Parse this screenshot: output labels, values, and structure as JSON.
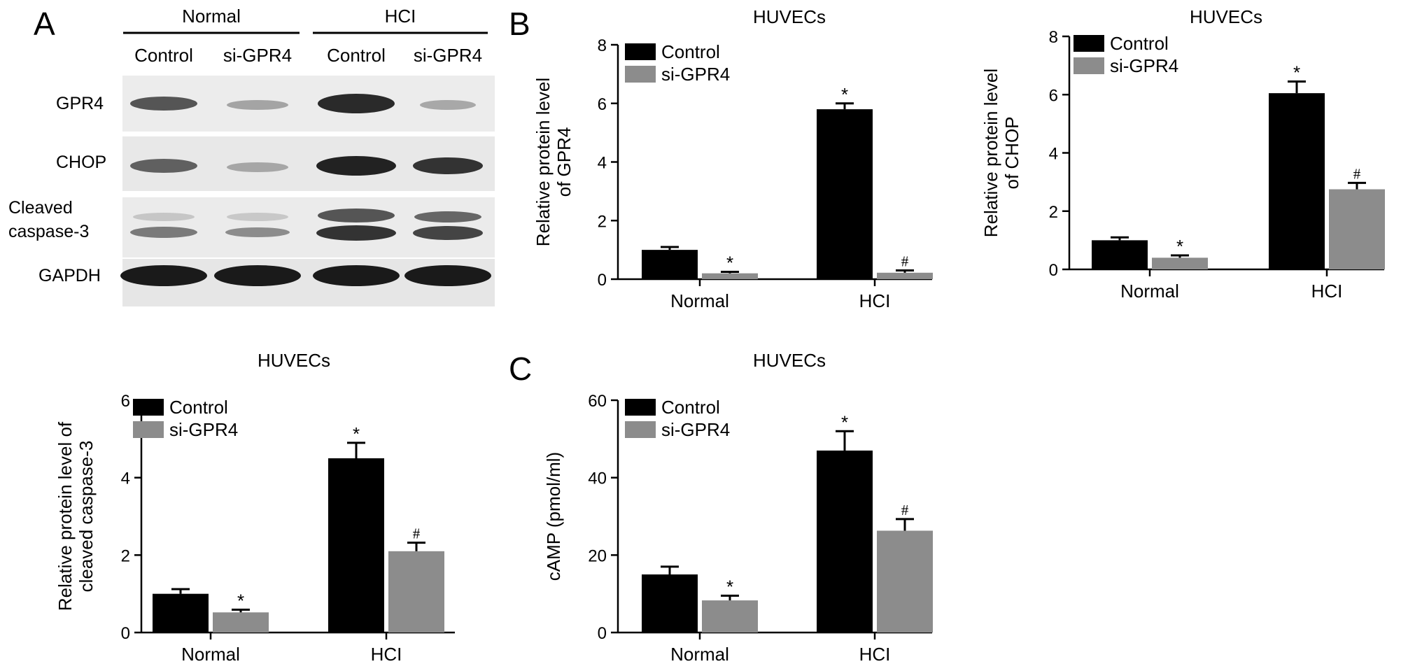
{
  "panel_labels": [
    "A",
    "B",
    "C"
  ],
  "blot": {
    "group_headers": [
      "Normal",
      "HCI"
    ],
    "lane_labels": [
      "Control",
      "si-GPR4",
      "Control",
      "si-GPR4"
    ],
    "row_labels": [
      "GPR4",
      "CHOP",
      "Cleaved\ncaspase-3",
      "GAPDH"
    ]
  },
  "colors": {
    "control": "#000000",
    "si_gpr4": "#8c8c8c"
  },
  "chart_data": [
    {
      "type": "bar",
      "panel": "B",
      "title": "HUVECs",
      "ylabel": "Relative protein level\nof GPR4",
      "categories": [
        "Normal",
        "HCI"
      ],
      "ylim": [
        0,
        8
      ],
      "yticks": [
        0,
        2,
        4,
        6,
        8
      ],
      "legend": "top-left",
      "series": [
        {
          "name": "Control",
          "values": [
            1.0,
            5.8
          ],
          "errors": [
            0.1,
            0.2
          ],
          "annotations": [
            "",
            "*"
          ]
        },
        {
          "name": "si-GPR4",
          "values": [
            0.2,
            0.22
          ],
          "errors": [
            0.05,
            0.08
          ],
          "annotations": [
            "*",
            "#"
          ]
        }
      ]
    },
    {
      "type": "bar",
      "panel": "B",
      "title": "HUVECs",
      "ylabel": "Relative protein level\nof CHOP",
      "categories": [
        "Normal",
        "HCI"
      ],
      "ylim": [
        0,
        8
      ],
      "yticks": [
        0,
        2,
        4,
        6,
        8
      ],
      "legend": "top-left",
      "series": [
        {
          "name": "Control",
          "values": [
            1.0,
            6.05
          ],
          "errors": [
            0.1,
            0.4
          ],
          "annotations": [
            "",
            "*"
          ]
        },
        {
          "name": "si-GPR4",
          "values": [
            0.4,
            2.75
          ],
          "errors": [
            0.08,
            0.22
          ],
          "annotations": [
            "*",
            "#"
          ]
        }
      ]
    },
    {
      "type": "bar",
      "panel": "B",
      "title": "HUVECs",
      "ylabel": "Relative protein level of\ncleaved caspase-3",
      "categories": [
        "Normal",
        "HCI"
      ],
      "ylim": [
        0,
        6
      ],
      "yticks": [
        0,
        2,
        4,
        6
      ],
      "legend": "top-left",
      "series": [
        {
          "name": "Control",
          "values": [
            1.0,
            4.5
          ],
          "errors": [
            0.12,
            0.4
          ],
          "annotations": [
            "",
            "*"
          ]
        },
        {
          "name": "si-GPR4",
          "values": [
            0.52,
            2.1
          ],
          "errors": [
            0.07,
            0.22
          ],
          "annotations": [
            "*",
            "#"
          ]
        }
      ]
    },
    {
      "type": "bar",
      "panel": "C",
      "title": "HUVECs",
      "ylabel": "cAMP (pmol/ml)",
      "categories": [
        "Normal",
        "HCI"
      ],
      "ylim": [
        0,
        60
      ],
      "yticks": [
        0,
        20,
        40,
        60
      ],
      "legend": "top-left",
      "series": [
        {
          "name": "Control",
          "values": [
            15.0,
            47.0
          ],
          "errors": [
            2.0,
            5.0
          ],
          "annotations": [
            "",
            "*"
          ]
        },
        {
          "name": "si-GPR4",
          "values": [
            8.3,
            26.3
          ],
          "errors": [
            1.2,
            3.0
          ],
          "annotations": [
            "*",
            "#"
          ]
        }
      ]
    }
  ]
}
